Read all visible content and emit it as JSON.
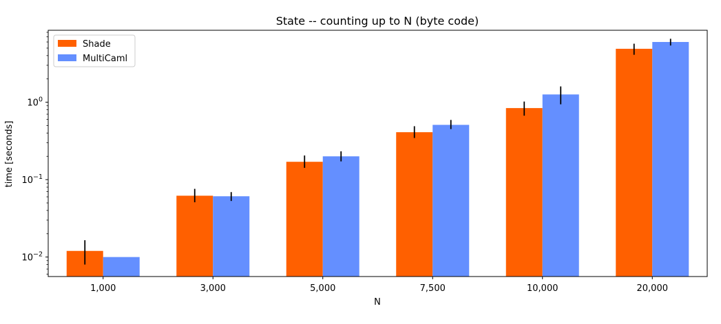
{
  "chart_data": {
    "type": "bar",
    "title": "State -- counting up to N (byte code)",
    "xlabel": "N",
    "ylabel": "time [seconds]",
    "yscale": "log",
    "ylim": [
      0.0056,
      8.5
    ],
    "yticks": [
      0.01,
      0.1,
      1
    ],
    "ytick_labels": [
      {
        "base": "10",
        "exp": "−2"
      },
      {
        "base": "10",
        "exp": "−1"
      },
      {
        "base": "10",
        "exp": "0"
      }
    ],
    "categories": [
      "1,000",
      "3,000",
      "5,000",
      "7,500",
      "10,000",
      "20,000"
    ],
    "series": [
      {
        "name": "Shade",
        "color": "#ff6000",
        "values": [
          0.012,
          0.062,
          0.17,
          0.41,
          0.84,
          4.9
        ],
        "err_low": [
          0.008,
          0.051,
          0.142,
          0.345,
          0.67,
          4.1
        ],
        "err_high": [
          0.0165,
          0.076,
          0.205,
          0.49,
          1.02,
          5.7
        ]
      },
      {
        "name": "MultiCaml",
        "color": "#648fff",
        "values": [
          0.01,
          0.061,
          0.2,
          0.51,
          1.26,
          6.0
        ],
        "err_low": [
          0.01,
          0.053,
          0.172,
          0.45,
          0.94,
          5.4
        ],
        "err_high": [
          0.01,
          0.069,
          0.232,
          0.59,
          1.6,
          6.6
        ]
      }
    ],
    "legend": "upper-left",
    "grid": false
  }
}
